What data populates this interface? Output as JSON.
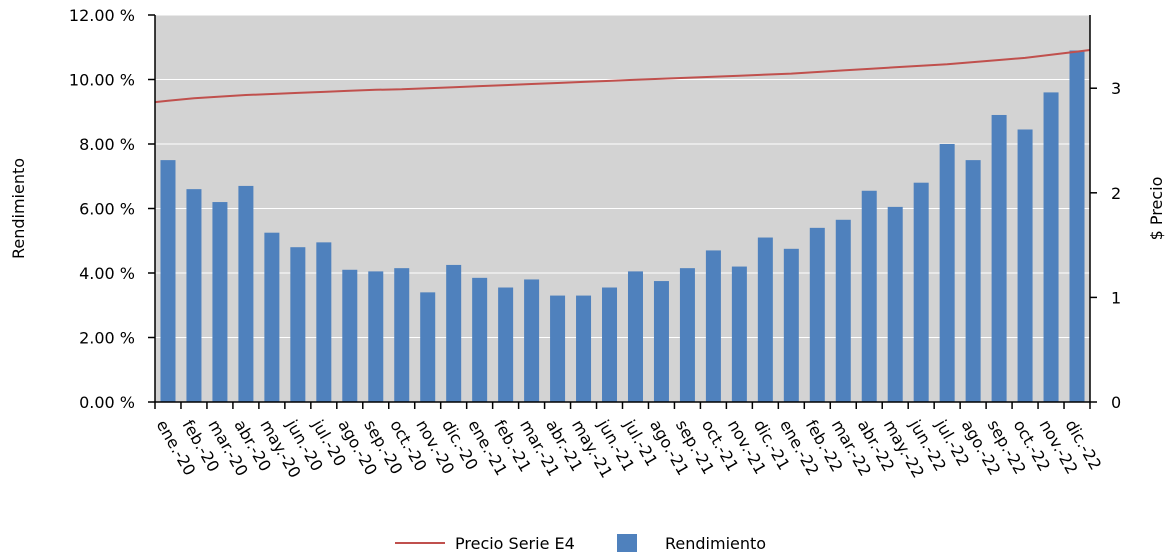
{
  "chart_data": {
    "type": "bar",
    "categories": [
      "ene.-20",
      "feb.-20",
      "mar.-20",
      "abr.-20",
      "may.-20",
      "jun.-20",
      "jul.-20",
      "ago.-20",
      "sep.-20",
      "oct.-20",
      "nov.-20",
      "dic.-20",
      "ene.-21",
      "feb.-21",
      "mar.-21",
      "abr.-21",
      "may.-21",
      "jun.-21",
      "jul.-21",
      "ago.-21",
      "sep.-21",
      "oct.-21",
      "nov.-21",
      "dic.-21",
      "ene.-22",
      "feb.-22",
      "mar.-22",
      "abr.-22",
      "may.-22",
      "jun.-22",
      "jul.-22",
      "ago.-22",
      "sep.-22",
      "oct.-22",
      "nov.-22",
      "dic.-22"
    ],
    "series": [
      {
        "name": "Rendimiento",
        "type": "bar",
        "axis": "left",
        "color": "#4f81bd",
        "values": [
          7.5,
          6.6,
          6.2,
          6.7,
          5.25,
          4.8,
          4.95,
          4.1,
          4.05,
          4.15,
          3.4,
          4.25,
          3.85,
          3.55,
          3.8,
          3.3,
          3.3,
          3.55,
          4.05,
          3.75,
          4.15,
          4.7,
          4.2,
          5.1,
          4.75,
          5.4,
          5.65,
          6.55,
          6.05,
          6.8,
          8.0,
          7.5,
          8.9,
          8.45,
          9.6,
          10.9
        ]
      },
      {
        "name": "Precio Serie E4",
        "type": "line",
        "axis": "right",
        "color": "#c0504d",
        "values": [
          2.88,
          2.905,
          2.92,
          2.935,
          2.945,
          2.955,
          2.965,
          2.975,
          2.985,
          2.99,
          3.0,
          3.01,
          3.02,
          3.03,
          3.04,
          3.05,
          3.06,
          3.07,
          3.08,
          3.09,
          3.1,
          3.11,
          3.12,
          3.13,
          3.14,
          3.155,
          3.17,
          3.185,
          3.2,
          3.215,
          3.23,
          3.25,
          3.27,
          3.29,
          3.32,
          3.35
        ]
      }
    ],
    "ylabel": "Rendimiento",
    "y2label": "$ Precio",
    "ylim": [
      0,
      12
    ],
    "y2lim": [
      0,
      3.7
    ],
    "yticks": [
      "0.00 %",
      "2.00 %",
      "4.00 %",
      "6.00 %",
      "8.00 %",
      "10.00 %",
      "12.00 %"
    ],
    "y2ticks": [
      "0",
      "1",
      "2",
      "3"
    ],
    "grid": true,
    "legend_position": "bottom",
    "legend": {
      "line_label": "Precio Serie E4",
      "bar_label": "Rendimiento"
    },
    "plot_background": "#d3d3d3",
    "grid_color": "#ffffff"
  }
}
